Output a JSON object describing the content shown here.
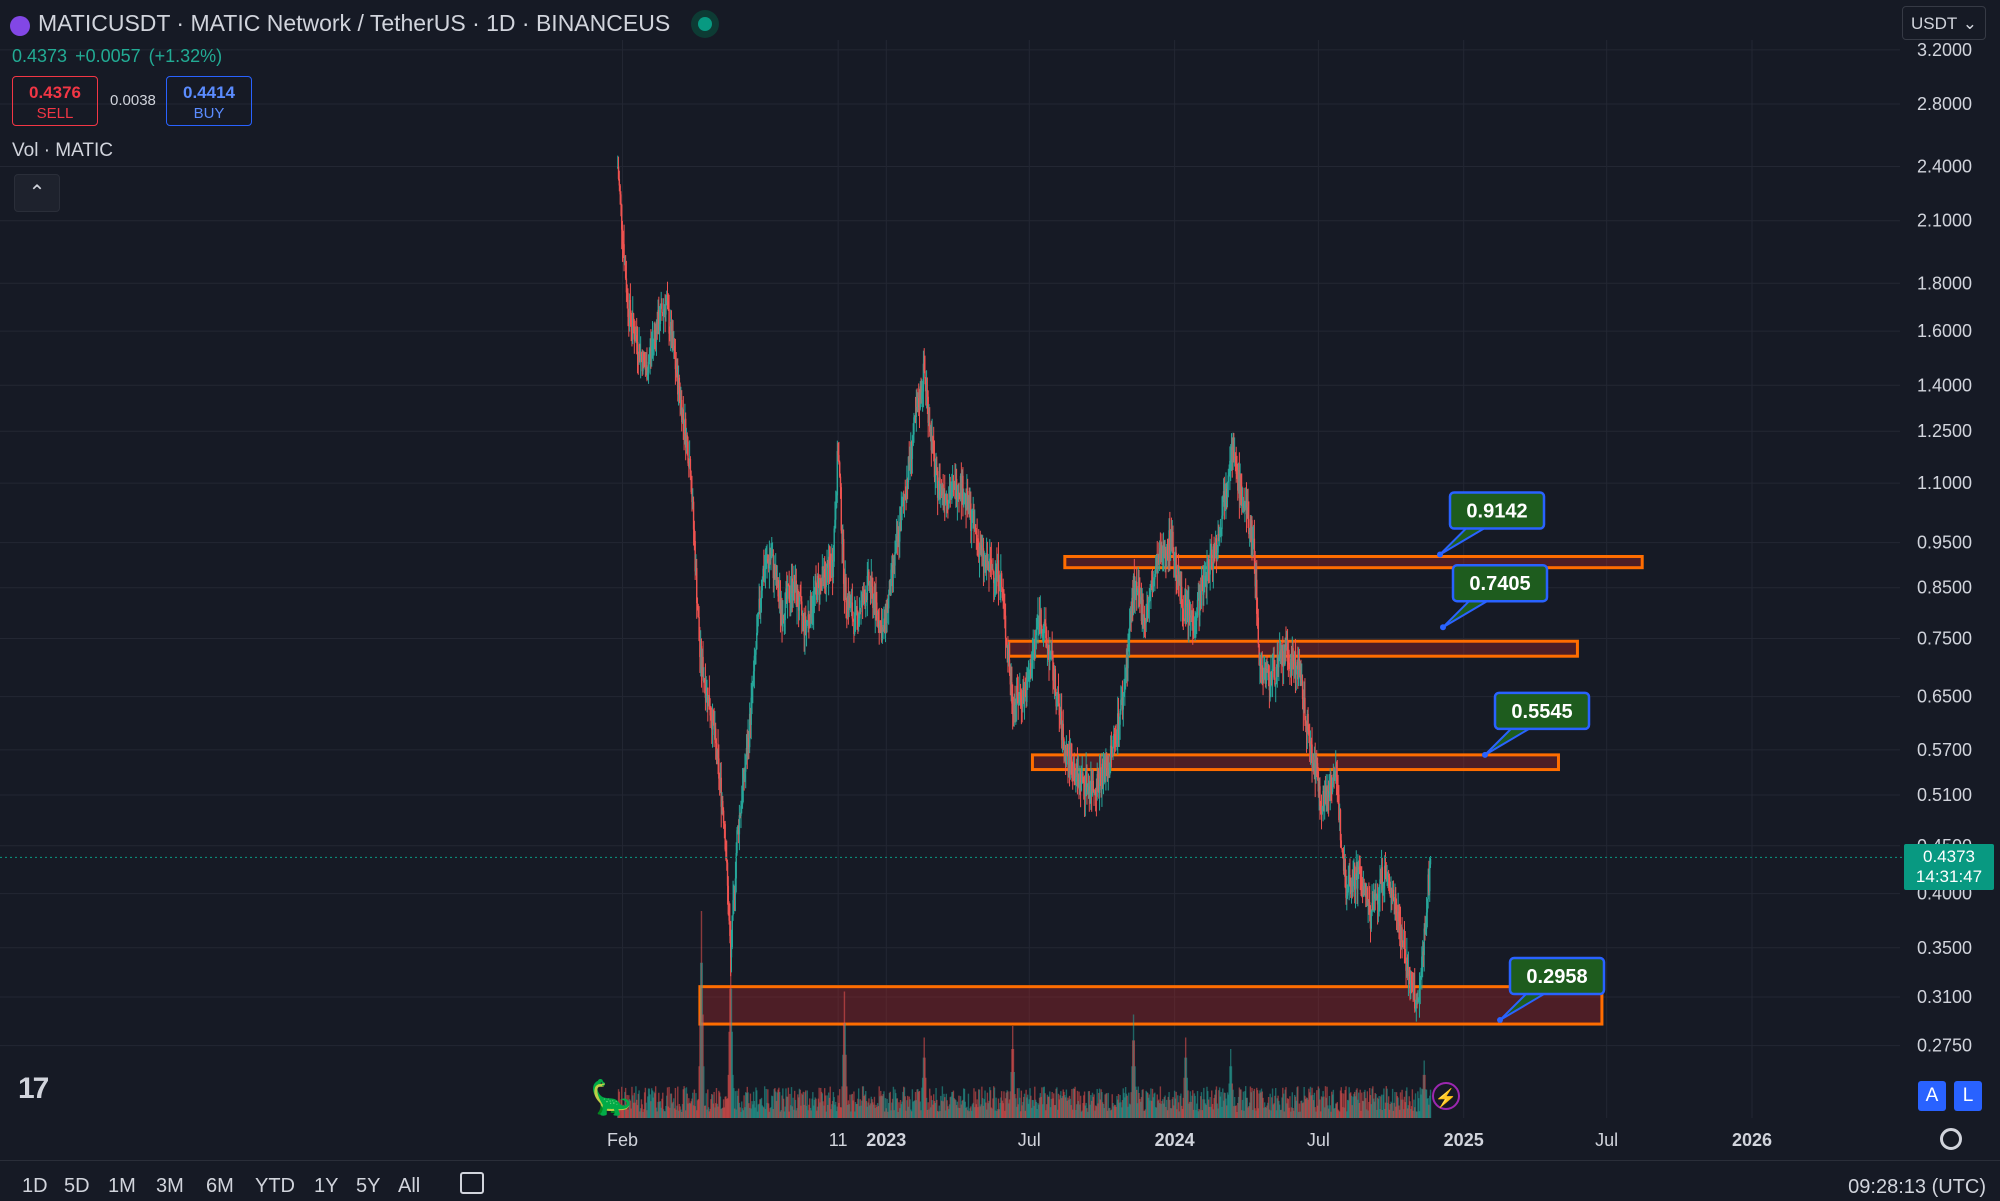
{
  "header": {
    "title": "MATICUSDT · MATIC Network / TetherUS · 1D · BINANCEUS",
    "last": "0.4373",
    "change": "+0.0057",
    "change_pct": "(+1.32%)",
    "sell_price": "0.4376",
    "sell_label": "SELL",
    "spread": "0.0038",
    "buy_price": "0.4414",
    "buy_label": "BUY",
    "volume_label": "Vol · MATIC",
    "currency": "USDT"
  },
  "price_tag": {
    "price": "0.4373",
    "countdown": "14:31:47"
  },
  "logo_text": "17",
  "timeframes": [
    "1D",
    "5D",
    "1M",
    "3M",
    "6M",
    "YTD",
    "1Y",
    "5Y",
    "All"
  ],
  "clock": "09:28:13 (UTC)",
  "buttons": {
    "auto": "A",
    "log": "L"
  },
  "colors": {
    "up": "#26a69a",
    "down": "#ef5350",
    "zone_border": "#ff6d00",
    "zone_fill": "rgba(180,40,40,0.35)",
    "callout_fill": "#1e5c1e",
    "callout_border": "#2962ff",
    "last_price": "#089981"
  },
  "chart_data": {
    "type": "candlestick",
    "scale": "log",
    "x_ticks": [
      "Feb",
      "11",
      "2023",
      "Jul",
      "2024",
      "Jul",
      "2025",
      "Jul",
      "2026"
    ],
    "x_tick_dates": [
      "2022-02-01",
      "2022-11-01",
      "2023-01-01",
      "2023-07-01",
      "2024-01-01",
      "2024-07-01",
      "2025-01-01",
      "2025-07-01",
      "2026-01-01"
    ],
    "y_ticks": [
      0.275,
      0.31,
      0.35,
      0.4,
      0.45,
      0.51,
      0.57,
      0.65,
      0.75,
      0.85,
      0.95,
      1.1,
      1.25,
      1.4,
      1.6,
      1.8,
      2.1,
      2.4,
      2.8,
      3.2
    ],
    "y_tick_labels": [
      "0.2750",
      "0.3100",
      "0.3500",
      "0.4000",
      "0.4500",
      "0.5100",
      "0.5700",
      "0.6500",
      "0.7500",
      "0.8500",
      "0.9500",
      "1.1000",
      "1.2500",
      "1.4000",
      "1.6000",
      "1.8000",
      "2.1000",
      "2.4000",
      "2.8000",
      "3.2000"
    ],
    "last_price": 0.4373,
    "price_path": [
      [
        "2022-01-26",
        2.4
      ],
      [
        "2022-02-08",
        1.7
      ],
      [
        "2022-02-20",
        1.55
      ],
      [
        "2022-03-03",
        1.45
      ],
      [
        "2022-03-14",
        1.6
      ],
      [
        "2022-03-28",
        1.72
      ],
      [
        "2022-04-10",
        1.45
      ],
      [
        "2022-04-28",
        1.15
      ],
      [
        "2022-05-10",
        0.72
      ],
      [
        "2022-05-25",
        0.62
      ],
      [
        "2022-06-10",
        0.48
      ],
      [
        "2022-06-18",
        0.34
      ],
      [
        "2022-06-26",
        0.46
      ],
      [
        "2022-07-10",
        0.58
      ],
      [
        "2022-07-28",
        0.88
      ],
      [
        "2022-08-08",
        0.92
      ],
      [
        "2022-08-22",
        0.8
      ],
      [
        "2022-09-05",
        0.86
      ],
      [
        "2022-09-20",
        0.77
      ],
      [
        "2022-10-05",
        0.85
      ],
      [
        "2022-10-25",
        0.9
      ],
      [
        "2022-11-01",
        1.2
      ],
      [
        "2022-11-09",
        0.85
      ],
      [
        "2022-11-22",
        0.78
      ],
      [
        "2022-12-10",
        0.86
      ],
      [
        "2022-12-28",
        0.76
      ],
      [
        "2023-01-15",
        0.95
      ],
      [
        "2023-02-05",
        1.25
      ],
      [
        "2023-02-18",
        1.45
      ],
      [
        "2023-03-05",
        1.1
      ],
      [
        "2023-03-20",
        1.07
      ],
      [
        "2023-04-05",
        1.1
      ],
      [
        "2023-04-20",
        1.0
      ],
      [
        "2023-05-05",
        0.9
      ],
      [
        "2023-05-25",
        0.88
      ],
      [
        "2023-06-10",
        0.64
      ],
      [
        "2023-06-28",
        0.66
      ],
      [
        "2023-07-14",
        0.8
      ],
      [
        "2023-07-30",
        0.7
      ],
      [
        "2023-08-15",
        0.57
      ],
      [
        "2023-09-01",
        0.53
      ],
      [
        "2023-09-20",
        0.52
      ],
      [
        "2023-10-10",
        0.55
      ],
      [
        "2023-10-28",
        0.65
      ],
      [
        "2023-11-10",
        0.85
      ],
      [
        "2023-11-25",
        0.79
      ],
      [
        "2023-12-10",
        0.9
      ],
      [
        "2023-12-28",
        0.96
      ],
      [
        "2024-01-10",
        0.82
      ],
      [
        "2024-01-25",
        0.78
      ],
      [
        "2024-02-10",
        0.88
      ],
      [
        "2024-02-25",
        0.96
      ],
      [
        "2024-03-12",
        1.2
      ],
      [
        "2024-03-28",
        1.05
      ],
      [
        "2024-04-10",
        0.95
      ],
      [
        "2024-04-18",
        0.7
      ],
      [
        "2024-05-01",
        0.68
      ],
      [
        "2024-05-20",
        0.72
      ],
      [
        "2024-06-05",
        0.7
      ],
      [
        "2024-06-20",
        0.58
      ],
      [
        "2024-07-06",
        0.5
      ],
      [
        "2024-07-22",
        0.54
      ],
      [
        "2024-08-05",
        0.41
      ],
      [
        "2024-08-22",
        0.42
      ],
      [
        "2024-09-05",
        0.38
      ],
      [
        "2024-09-22",
        0.42
      ],
      [
        "2024-10-08",
        0.39
      ],
      [
        "2024-10-25",
        0.32
      ],
      [
        "2024-11-04",
        0.3
      ],
      [
        "2024-11-12",
        0.36
      ],
      [
        "2024-11-20",
        0.4373
      ]
    ],
    "volume_spikes": [
      [
        "2022-05-12",
        0.9
      ],
      [
        "2022-06-18",
        0.75
      ],
      [
        "2022-11-09",
        0.55
      ],
      [
        "2023-02-18",
        0.35
      ],
      [
        "2023-06-10",
        0.4
      ],
      [
        "2023-11-10",
        0.45
      ],
      [
        "2024-01-15",
        0.35
      ],
      [
        "2024-03-12",
        0.3
      ],
      [
        "2024-11-12",
        0.25
      ]
    ],
    "zones": [
      {
        "low": 0.29,
        "high": 0.318,
        "start": "2022-05-10",
        "end": "2025-06-25",
        "label": "0.2958"
      },
      {
        "low": 0.543,
        "high": 0.563,
        "start": "2023-07-05",
        "end": "2025-05-01",
        "label": "0.5545"
      },
      {
        "low": 0.718,
        "high": 0.745,
        "start": "2023-06-05",
        "end": "2025-05-25",
        "label": "0.7405"
      },
      {
        "low": 0.893,
        "high": 0.918,
        "start": "2023-08-15",
        "end": "2025-08-15",
        "label": "0.9142"
      }
    ]
  }
}
